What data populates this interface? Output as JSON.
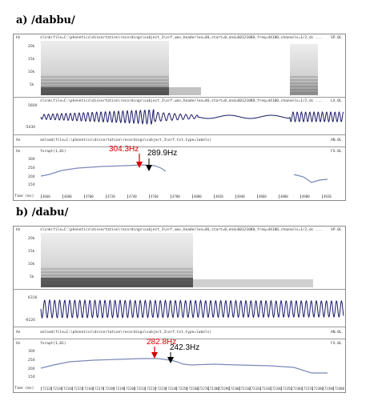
{
  "panels": [
    {
      "label": "a) /dabbu/",
      "spec_header": "slink(file=C:\\phonetics\\dissertation\\recordings\\subject_3\\orf.wav,headerlen=46,start=0,end=60121088,freq=44100,channels=1/2,dc ...",
      "spec_right": "SP.0L",
      "spec_left": "Hz",
      "spec_ticks": [
        "20k",
        "15k",
        "10k",
        "5k"
      ],
      "wave_header": "slink(file=C:\\phonetics\\dissertation\\recordings\\subject_3\\orf.wav,headerlen=46,start=0,end=60121088,freq=44100,channels=1/2,dc ...",
      "wave_right": "LX.0L",
      "wave_top": "5600",
      "wave_bottom": "-5430",
      "an_left": "An",
      "an_header": "anload(file=C:\\phonetics\\dissertation\\recordings\\subject_3\\orf.txt,type=labels)",
      "an_right": "AN.0L",
      "f0_left": "Hz",
      "f0_header": "fxrapt(1,01)",
      "f0_right": "FX.0L",
      "f0_ticks": [
        "300",
        "250",
        "200",
        "150"
      ],
      "time_label": "Time (ms)",
      "time_ticks": [
        "4660",
        "4680",
        "4700",
        "4720",
        "4740",
        "4760",
        "4780",
        "4800",
        "4820",
        "4840",
        "4860",
        "4880",
        "4900",
        "4920"
      ],
      "annot_red": "304.3Hz",
      "annot_black": "289.9Hz"
    },
    {
      "label": "b) /dabu/",
      "spec_header": "slink(file=C:\\phonetics\\dissertation\\recordings\\subject_3\\orf.wav,headerlen=46,start=0,end=60121088,freq=44100,channels=1/2,dc ...",
      "spec_right": "SP.0L",
      "spec_left": "Hz",
      "spec_ticks": [
        "20k",
        "15k",
        "10k",
        "5k"
      ],
      "wave_header": "",
      "wave_right": "",
      "wave_top": "6316",
      "wave_bottom": "-6120",
      "an_left": "An",
      "an_header": "anload(file=C:\\phonetics\\dissertation\\recordings\\subject_3\\orf.txt,type=labels)",
      "an_right": "AN.0L",
      "f0_left": "Hz",
      "f0_header": "fxrapt(1,01)",
      "f0_right": "FX.0L",
      "f0_ticks": [
        "300",
        "250",
        "200",
        "150"
      ],
      "time_label": "Time (ms)",
      "time_ticks": [
        "72120",
        "72130",
        "72140",
        "72150",
        "72160",
        "72170",
        "72180",
        "72190",
        "72200",
        "72210",
        "72220",
        "72230",
        "72240",
        "72250",
        "72260",
        "72270",
        "72280",
        "72290",
        "72300",
        "72310",
        "72320",
        "72330",
        "72340",
        "72350",
        "72360",
        "72370",
        "72380",
        "72390",
        "72400"
      ],
      "annot_red": "282.8Hz",
      "annot_black": "242.3Hz"
    }
  ],
  "colors": {
    "red_arrow": "#d40000",
    "black_arrow": "#000000",
    "wave": "#1a1a66",
    "f0": "#7a88b8"
  }
}
